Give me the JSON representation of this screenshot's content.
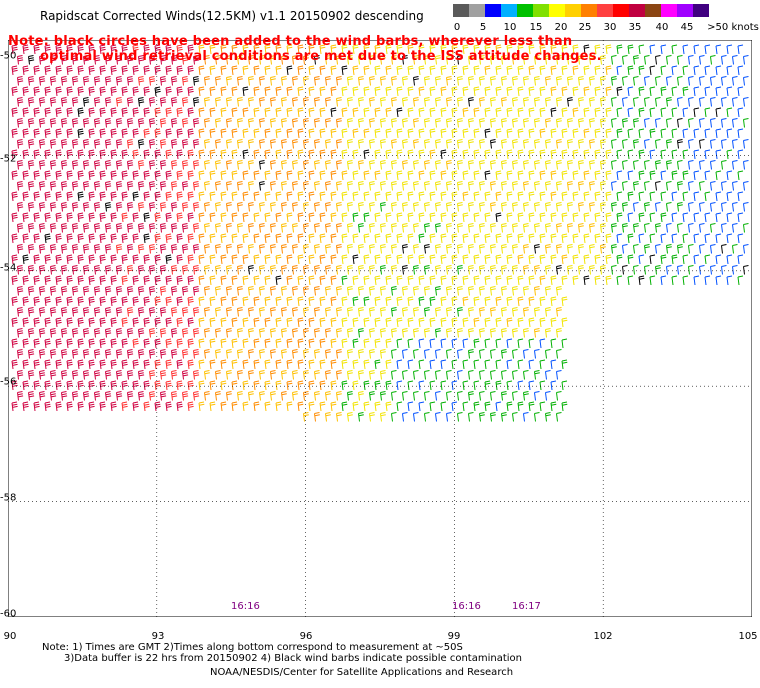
{
  "title": "Rapidscat Corrected Winds(12.5KM) v1.1 20150902 descending",
  "note": {
    "line1": "Note: black circles have been added to the wind barbs, wherever less than",
    "line2": "optimal wind retrieval conditions are met due to the ISS attitude changes."
  },
  "colorbar": {
    "labels": [
      "0",
      "5",
      "10",
      "15",
      "20",
      "25",
      "30",
      "35",
      "40",
      "45",
      ">50 knots"
    ],
    "colors": [
      "#5a5a5a",
      "#a0a0a0",
      "#0000ff",
      "#00b0ff",
      "#00c000",
      "#80e000",
      "#ffff00",
      "#ffd000",
      "#ff8000",
      "#ff4040",
      "#ff0000",
      "#c00040",
      "#8b4513",
      "#ff00ff",
      "#a000ff",
      "#400080"
    ]
  },
  "map": {
    "lat_labels": [
      "-50",
      "-52",
      "-54",
      "-56",
      "-58",
      "-60"
    ],
    "lon_labels": [
      "90",
      "93",
      "96",
      "99",
      "102",
      "105"
    ],
    "lat_range": [
      -60,
      -50
    ],
    "lon_range": [
      90,
      105
    ],
    "grid": true
  },
  "times": [
    {
      "label": "16:16",
      "lon": 94.8
    },
    {
      "label": "16:16",
      "lon": 99.3
    },
    {
      "label": "16:17",
      "lon": 100.4
    }
  ],
  "footer": {
    "line1": "Note: 1) Times are GMT 2)Times along bottom correspond to measurement at ~50S",
    "line2": "3)Data buffer is 22 hrs from 20150902 4) Black wind barbs indicate possible contamination",
    "line3": "NOAA/NESDIS/Center for Satellite Applications and Research"
  }
}
